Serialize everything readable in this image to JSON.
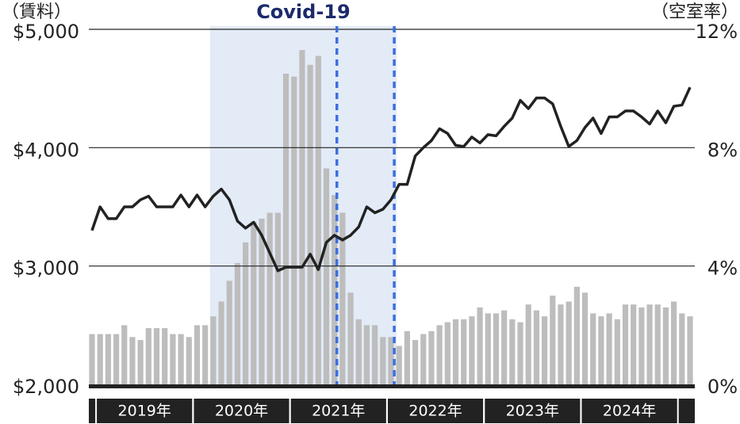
{
  "chart_data": {
    "type": "combo",
    "annotation": "Covid-19",
    "y_axis_label": "（賃料）",
    "y2_axis_label": "（空室率）",
    "categories": [
      null,
      "2019年",
      null,
      null,
      null,
      null,
      null,
      null,
      null,
      null,
      null,
      null,
      null,
      "2020年",
      null,
      null,
      null,
      null,
      null,
      null,
      null,
      null,
      null,
      null,
      null,
      "2021年",
      null,
      null,
      null,
      null,
      null,
      null,
      null,
      null,
      null,
      null,
      null,
      "2022年",
      null,
      null,
      null,
      null,
      null,
      null,
      null,
      null,
      null,
      null,
      null,
      "2023年",
      null,
      null,
      null,
      null,
      null,
      null,
      null,
      null,
      null,
      null,
      null,
      "2024年",
      null,
      null,
      null,
      null,
      null,
      null,
      null,
      null,
      null,
      null,
      null,
      null,
      null
    ],
    "series": [
      {
        "name": "空室率",
        "type": "bar",
        "axis": "y2",
        "color": "#bdbdbd",
        "values": [
          1.7,
          1.7,
          1.7,
          1.7,
          2.0,
          1.6,
          1.5,
          1.9,
          1.9,
          1.9,
          1.7,
          1.7,
          1.6,
          2.0,
          2.0,
          2.3,
          2.8,
          3.5,
          4.1,
          4.8,
          5.5,
          5.6,
          5.8,
          5.8,
          10.5,
          10.4,
          11.3,
          10.8,
          11.1,
          7.3,
          6.4,
          5.8,
          3.1,
          2.2,
          2.0,
          2.0,
          1.6,
          1.6,
          1.3,
          1.8,
          1.5,
          1.7,
          1.8,
          2.0,
          2.1,
          2.2,
          2.2,
          2.3,
          2.6,
          2.4,
          2.4,
          2.5,
          2.2,
          2.1,
          2.7,
          2.5,
          2.3,
          3.0,
          2.7,
          2.8,
          3.3,
          3.1,
          2.4,
          2.3,
          2.4,
          2.2,
          2.7,
          2.7,
          2.6,
          2.7,
          2.7,
          2.6,
          2.8,
          2.4,
          2.3
        ]
      },
      {
        "name": "賃料",
        "type": "line",
        "axis": "y",
        "color": "#222222",
        "values": [
          3300,
          3500,
          3400,
          3400,
          3500,
          3500,
          3560,
          3590,
          3500,
          3500,
          3500,
          3600,
          3500,
          3600,
          3500,
          3590,
          3650,
          3560,
          3380,
          3320,
          3370,
          3260,
          3110,
          2960,
          2990,
          2990,
          2990,
          3100,
          2970,
          3200,
          3260,
          3220,
          3260,
          3330,
          3500,
          3450,
          3480,
          3560,
          3690,
          3690,
          3930,
          4000,
          4060,
          4160,
          4120,
          4020,
          4010,
          4090,
          4040,
          4110,
          4100,
          4180,
          4250,
          4400,
          4330,
          4420,
          4420,
          4370,
          4180,
          4010,
          4060,
          4170,
          4250,
          4120,
          4260,
          4260,
          4310,
          4310,
          4260,
          4200,
          4310,
          4210,
          4350,
          4360,
          4510
        ]
      }
    ],
    "ylim": [
      2000,
      5000
    ],
    "yticks": [
      {
        "value": 2000,
        "label": "$2,000"
      },
      {
        "value": 3000,
        "label": "$3,000"
      },
      {
        "value": 4000,
        "label": "$4,000"
      },
      {
        "value": 5000,
        "label": "$5,000"
      }
    ],
    "y2lim": [
      0,
      12
    ],
    "y2ticks": [
      {
        "value": 0,
        "label": "0%"
      },
      {
        "value": 4,
        "label": "4%"
      },
      {
        "value": 8,
        "label": "8%"
      },
      {
        "value": 12,
        "label": "12%"
      }
    ],
    "grid": true
  }
}
